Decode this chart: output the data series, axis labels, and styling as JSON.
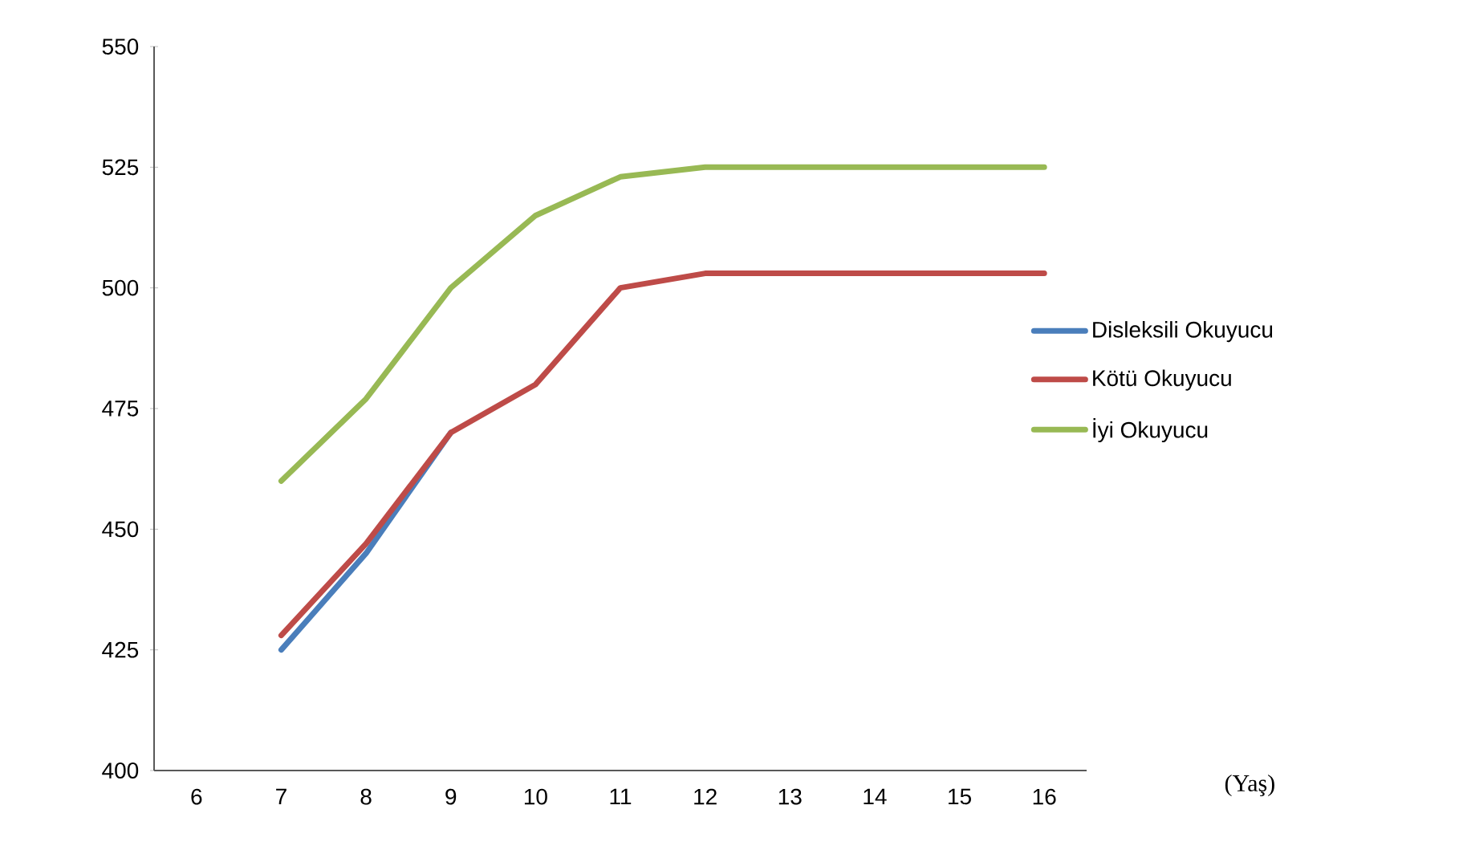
{
  "chart_data": {
    "type": "line",
    "annotations": [
      "(Yaş)"
    ],
    "categories": [
      "6",
      "7",
      "8",
      "9",
      "10",
      "11",
      "12",
      "13",
      "14",
      "15",
      "16"
    ],
    "ylim": [
      400,
      550
    ],
    "yticks": [
      400,
      425,
      450,
      475,
      500,
      525,
      550
    ],
    "legend": "right",
    "marker": "none",
    "line_style": "solid",
    "grid": false,
    "series": [
      {
        "name": "Disleksili Okuyucu",
        "color": "#4a7ebb",
        "values": [
          null,
          425,
          445,
          470,
          null,
          null,
          null,
          null,
          null,
          null,
          null
        ]
      },
      {
        "name": "Kötü Okuyucu",
        "color": "#be4b48",
        "values": [
          null,
          428,
          447,
          470,
          480,
          500,
          503,
          503,
          503,
          503,
          503
        ]
      },
      {
        "name": "İyi Okuyucu",
        "color": "#98b954",
        "values": [
          null,
          460,
          477,
          500,
          515,
          523,
          525,
          525,
          525,
          525,
          525
        ]
      }
    ]
  }
}
